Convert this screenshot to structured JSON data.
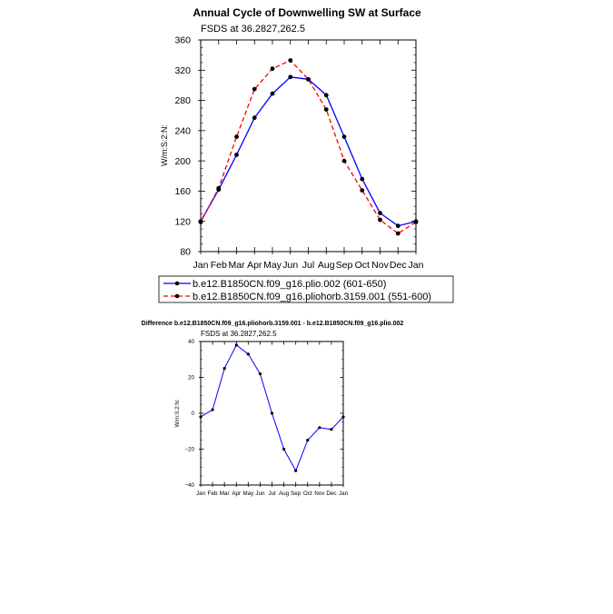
{
  "chart_data": [
    {
      "type": "line",
      "title": "Annual Cycle of Downwelling SW at Surface",
      "subtitle": "FSDS at 36.2827,262.5",
      "ylabel": "W/m:S:2:N:",
      "xlabel": "",
      "categories": [
        "Jan",
        "Feb",
        "Mar",
        "Apr",
        "May",
        "Jun",
        "Jul",
        "Aug",
        "Sep",
        "Oct",
        "Nov",
        "Dec",
        "Jan"
      ],
      "yticks": [
        80,
        120,
        160,
        200,
        240,
        280,
        320,
        360
      ],
      "ylim": [
        80,
        360
      ],
      "grid": false,
      "legend": "bottom",
      "series": [
        {
          "name": "b.e12.B1850CN.f09_g16.plio.002 (601-650)",
          "color": "#0000ff",
          "dash": "solid",
          "values": [
            120,
            162,
            208,
            257,
            289,
            311,
            308,
            287,
            232,
            176,
            131,
            114,
            120
          ]
        },
        {
          "name": "b.e12.B1850CN.f09_g16.pliohorb.3159.001 (551-600)",
          "color": "#ff0000",
          "dash": "dashed",
          "values": [
            119,
            164,
            232,
            295,
            322,
            333,
            308,
            268,
            200,
            161,
            122,
            104,
            119
          ]
        }
      ]
    },
    {
      "type": "line",
      "title": "Difference b.e12.B1850CN.f09_g16.pliohorb.3159.001 - b.e12.B1850CN.f09_g16.plio.002",
      "subtitle": "FSDS at 36.2827,262.5",
      "ylabel": "W/m:S:2:N:",
      "xlabel": "",
      "categories": [
        "Jan",
        "Feb",
        "Mar",
        "Apr",
        "May",
        "Jun",
        "Jul",
        "Aug",
        "Sep",
        "Oct",
        "Nov",
        "Dec",
        "Jan"
      ],
      "yticks": [
        -40,
        -20,
        0,
        20,
        40
      ],
      "ylim": [
        -40,
        40
      ],
      "grid": false,
      "series": [
        {
          "color": "#0000ff",
          "dash": "solid",
          "values": [
            -2,
            2,
            25,
            38,
            33,
            22,
            0,
            -20,
            -32,
            -15,
            -8,
            -9,
            -2
          ]
        }
      ]
    }
  ]
}
